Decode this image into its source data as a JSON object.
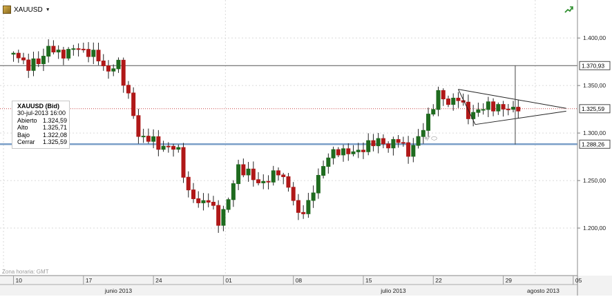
{
  "symbol": {
    "name": "XAUUSD",
    "caret": "▼"
  },
  "icons": {
    "symbol": "gold-bar-icon",
    "trend": "trend-arrow-icon",
    "tools": "drawing-tools-icon"
  },
  "colors": {
    "up": "#1f6b1f",
    "down": "#b01818",
    "grid": "#d9d9d9",
    "line": "#555555",
    "price_line": "#c84040",
    "support_line": "#7a9fc8",
    "tag_border": "#444444",
    "axis_bg": "#f2f2f2"
  },
  "info_box": {
    "title": "XAUUSD (Bid)",
    "date": "30-jul-2013 16:00",
    "rows": [
      {
        "label": "Abierto",
        "value": "1.324,59"
      },
      {
        "label": "Alto",
        "value": "1.325,71"
      },
      {
        "label": "Bajo",
        "value": "1.322,08"
      },
      {
        "label": "Cerrar",
        "value": "1.325,59"
      }
    ]
  },
  "timezone_label": "Zona horaria: GMT",
  "draw_tools": "+⁄ ⬭",
  "chart_data": {
    "type": "candlestick",
    "title": "",
    "xlabel": "",
    "ylabel": "",
    "ylim": [
      1150,
      1440
    ],
    "y_ticks": [
      {
        "value": 1400,
        "label": "1.400,00"
      },
      {
        "value": 1350,
        "label": "1.350,00"
      },
      {
        "value": 1300,
        "label": "1.300,00"
      },
      {
        "value": 1250,
        "label": "1.250,00"
      },
      {
        "value": 1200,
        "label": "1.200,00"
      }
    ],
    "x_ticks": [
      "10",
      "17",
      "24",
      "01",
      "08",
      "15",
      "22",
      "29",
      "05"
    ],
    "x_tick_days": [
      0,
      7,
      14,
      21,
      28,
      35,
      42,
      49,
      56
    ],
    "month_labels": [
      {
        "label": "junio 2013",
        "day": 10.5
      },
      {
        "label": "julio 2013",
        "day": 38
      },
      {
        "label": "agosto 2013",
        "day": 53
      }
    ],
    "vertical_separators": [
      -1,
      21.2,
      52.2
    ],
    "horizontal_levels": [
      {
        "value": 1370.93,
        "label": "1.370,93",
        "style": "resistance"
      },
      {
        "value": 1288.26,
        "label": "1.288,26",
        "style": "support"
      }
    ],
    "current_price": {
      "value": 1325.59,
      "label": "1.325,59"
    },
    "triangle": {
      "upper": [
        [
          44.5,
          1346
        ],
        [
          55.3,
          1326
        ]
      ],
      "lower": [
        [
          46.2,
          1309
        ],
        [
          55.3,
          1323
        ]
      ]
    },
    "vertical_marker": {
      "day": 50.2,
      "from": 1288,
      "to": 1371
    },
    "closes": [
      [
        -0.5,
        1383
      ],
      [
        0.5,
        1381
      ],
      [
        1.5,
        1370
      ],
      [
        2.5,
        1375
      ],
      [
        3.5,
        1390
      ],
      [
        4.5,
        1383
      ],
      [
        5.5,
        1386
      ],
      [
        6.5,
        1389
      ],
      [
        7.5,
        1385
      ],
      [
        8.5,
        1378
      ],
      [
        9.5,
        1365
      ],
      [
        10.5,
        1372
      ],
      [
        11.5,
        1340
      ],
      [
        12.5,
        1296
      ],
      [
        13.5,
        1296
      ],
      [
        14.5,
        1285
      ],
      [
        15.5,
        1287
      ],
      [
        16.5,
        1280
      ],
      [
        17.5,
        1238
      ],
      [
        18.5,
        1225
      ],
      [
        19.5,
        1232
      ],
      [
        20.5,
        1205
      ],
      [
        21.5,
        1232
      ],
      [
        22.5,
        1262
      ],
      [
        23.5,
        1260
      ],
      [
        24.5,
        1245
      ],
      [
        25.5,
        1253
      ],
      [
        26.5,
        1258
      ],
      [
        27.5,
        1246
      ],
      [
        28.5,
        1212
      ],
      [
        29.5,
        1227
      ],
      [
        30.5,
        1252
      ],
      [
        31.5,
        1278
      ],
      [
        32.5,
        1279
      ],
      [
        33.5,
        1282
      ],
      [
        34.5,
        1278
      ],
      [
        35.5,
        1290
      ],
      [
        36.5,
        1290
      ],
      [
        37.5,
        1288
      ],
      [
        38.5,
        1292
      ],
      [
        39.5,
        1280
      ],
      [
        40.5,
        1293
      ],
      [
        41.5,
        1318
      ],
      [
        42.5,
        1340
      ],
      [
        43.5,
        1333
      ],
      [
        44.5,
        1336
      ],
      [
        45.5,
        1320
      ],
      [
        46.5,
        1322
      ],
      [
        47.5,
        1331
      ],
      [
        48.5,
        1325
      ],
      [
        49.5,
        1327
      ],
      [
        50.5,
        1325
      ]
    ]
  }
}
